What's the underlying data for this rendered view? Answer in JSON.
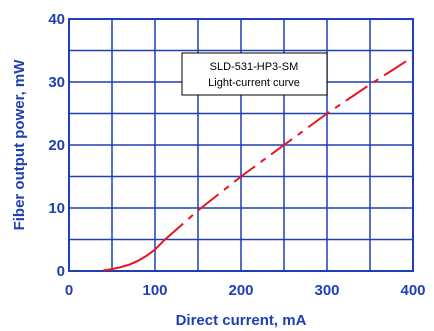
{
  "chart_data": {
    "type": "line",
    "title": "",
    "xlabel": "Direct current, mA",
    "ylabel": "Fiber output power, mW",
    "xlim": [
      0,
      400
    ],
    "ylim": [
      0,
      40
    ],
    "x_ticks": [
      0,
      100,
      200,
      300,
      400
    ],
    "y_ticks": [
      0,
      10,
      20,
      30,
      40
    ],
    "x_minor_step": 50,
    "y_minor_step": 5,
    "grid": true,
    "annotation": {
      "lines": [
        "SLD-531-HP3-SM",
        "Light-current curve"
      ]
    },
    "series": [
      {
        "color": "#e8141e",
        "segments": [
          {
            "style": "solid",
            "x": [
              40,
              50,
              60,
              70,
              80,
              90,
              100,
              110
            ],
            "y": [
              0.1,
              0.3,
              0.6,
              1.0,
              1.6,
              2.4,
              3.4,
              4.8
            ]
          },
          {
            "style": "dashdot",
            "x": [
              110,
              150,
              200,
              250,
              300,
              350,
              400
            ],
            "y": [
              4.8,
              9.6,
              15.0,
              20.0,
              25.0,
              29.6,
              34.0
            ]
          }
        ]
      }
    ]
  },
  "colors": {
    "axis": "#1f3fb5",
    "grid": "#1f3fb5",
    "curve": "#e8141e"
  }
}
